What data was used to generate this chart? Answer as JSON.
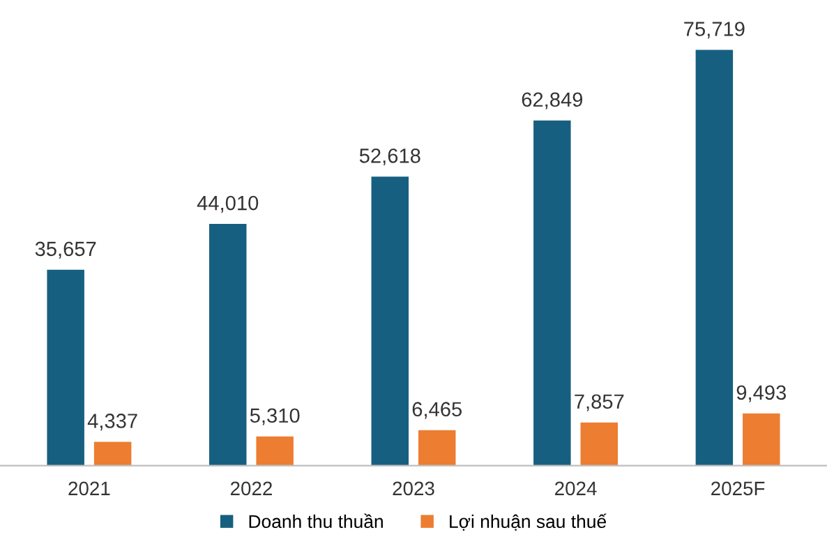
{
  "chart_data": {
    "type": "bar",
    "categories": [
      "2021",
      "2022",
      "2023",
      "2024",
      "2025F"
    ],
    "series": [
      {
        "name": "Doanh thu thuần",
        "color": "#175f80",
        "values": [
          35657,
          44010,
          52618,
          62849,
          75719
        ],
        "value_labels": [
          "35,657",
          "44,010",
          "52,618",
          "62,849",
          "75,719"
        ]
      },
      {
        "name": "Lợi nhuận sau thuế",
        "color": "#ed7d31",
        "values": [
          4337,
          5310,
          6465,
          7857,
          9493
        ],
        "value_labels": [
          "4,337",
          "5,310",
          "6,465",
          "7,857",
          "9,493"
        ]
      }
    ],
    "legend": "bottom",
    "grid": false
  }
}
